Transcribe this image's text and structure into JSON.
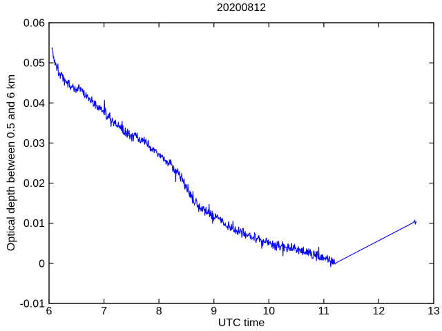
{
  "figure": {
    "background_color": "#ffffff"
  },
  "chart_data": {
    "type": "line",
    "title": "20200812",
    "xlabel": "UTC time",
    "ylabel": "Optical depth between 0.5 and 6 km",
    "xlim": [
      6,
      13
    ],
    "ylim": [
      -0.01,
      0.06
    ],
    "xticks": [
      6,
      7,
      8,
      9,
      10,
      11,
      12,
      13
    ],
    "xtick_labels": [
      "6",
      "7",
      "8",
      "9",
      "10",
      "11",
      "12",
      "13"
    ],
    "yticks": [
      -0.01,
      0,
      0.01,
      0.02,
      0.03,
      0.04,
      0.05,
      0.06
    ],
    "ytick_labels": [
      "-0.01",
      "0",
      "0.01",
      "0.02",
      "0.03",
      "0.04",
      "0.05",
      "0.06"
    ],
    "grid": false,
    "legend": null,
    "line_color": "#0000ff",
    "axis_color": "#000000",
    "background_color": "#ffffff",
    "series": [
      {
        "name": "optical_depth_noisy_trace",
        "style": "noisy-line",
        "x_start": 6.05,
        "x_end": 11.22,
        "sample_step": 0.007,
        "noise_amplitude": 0.0016,
        "trend_anchors": [
          [
            6.05,
            0.0545
          ],
          [
            6.08,
            0.0512
          ],
          [
            6.12,
            0.0502
          ],
          [
            6.18,
            0.0478
          ],
          [
            6.25,
            0.0462
          ],
          [
            6.35,
            0.0448
          ],
          [
            6.45,
            0.0437
          ],
          [
            6.55,
            0.0434
          ],
          [
            6.65,
            0.0422
          ],
          [
            6.8,
            0.0403
          ],
          [
            7.0,
            0.0378
          ],
          [
            7.15,
            0.0356
          ],
          [
            7.3,
            0.0335
          ],
          [
            7.45,
            0.0322
          ],
          [
            7.62,
            0.0313
          ],
          [
            7.8,
            0.0295
          ],
          [
            8.0,
            0.027
          ],
          [
            8.2,
            0.0248
          ],
          [
            8.35,
            0.0228
          ],
          [
            8.5,
            0.019
          ],
          [
            8.65,
            0.0152
          ],
          [
            8.8,
            0.0133
          ],
          [
            9.0,
            0.0121
          ],
          [
            9.15,
            0.0106
          ],
          [
            9.3,
            0.009
          ],
          [
            9.5,
            0.0078
          ],
          [
            9.7,
            0.0066
          ],
          [
            9.9,
            0.0054
          ],
          [
            10.1,
            0.0048
          ],
          [
            10.3,
            0.0042
          ],
          [
            10.5,
            0.0038
          ],
          [
            10.7,
            0.0028
          ],
          [
            10.9,
            0.0016
          ],
          [
            11.05,
            0.0009
          ],
          [
            11.15,
            0.0003
          ],
          [
            11.22,
            0.0001
          ]
        ]
      },
      {
        "name": "gap_tail_segment",
        "style": "line",
        "points": [
          [
            11.22,
            0.0001
          ],
          [
            12.62,
            0.0101
          ],
          [
            12.655,
            0.0107
          ],
          [
            12.665,
            0.0097
          ],
          [
            12.68,
            0.0105
          ]
        ]
      }
    ]
  }
}
